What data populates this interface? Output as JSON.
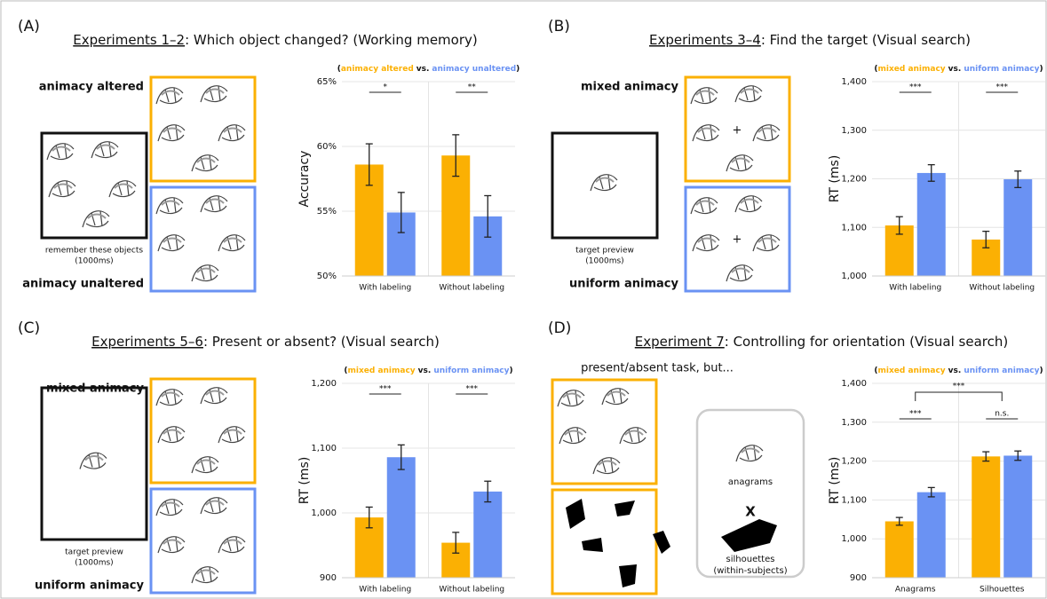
{
  "panels": [
    {
      "label": "(A)",
      "title_underlined": "Experiments 1–2",
      "title_rest": ": Which object changed? (Working memory)",
      "top_label": "animacy altered",
      "bottom_label": "animacy unaltered",
      "caption": [
        "remember these objects",
        "(1000ms)"
      ]
    },
    {
      "label": "(B)",
      "title_underlined": "Experiments 3–4",
      "title_rest": ": Find the target (Visual search)",
      "top_label": "mixed animacy",
      "bottom_label": "uniform animacy",
      "caption": [
        "target preview",
        "(1000ms)"
      ],
      "plus": "+"
    },
    {
      "label": "(C)",
      "title_underlined": "Experiments 5–6",
      "title_rest": ": Present or absent? (Visual search)",
      "top_label": "mixed animacy",
      "bottom_label": "uniform animacy",
      "caption": [
        "target preview",
        "(1000ms)"
      ]
    },
    {
      "label": "(D)",
      "title_underlined": "Experiment 7",
      "title_rest": ": Controlling for orientation (Visual search)",
      "instruction": "present/absent task, but...",
      "factor_a": "anagrams",
      "cross": "X",
      "factor_b": "silhouettes",
      "design_note": "(within-subjects)"
    }
  ],
  "chart_data": [
    {
      "type": "bar",
      "ylabel": "Accuracy",
      "categories": [
        "With labeling",
        "Without labeling"
      ],
      "legend_brackets": [
        "(",
        ")"
      ],
      "legend_joiner": "vs.",
      "series": [
        {
          "name": "animacy altered",
          "color": "#fbb003",
          "values": [
            58.6,
            59.3
          ],
          "errors": [
            1.6,
            1.6
          ]
        },
        {
          "name": "animacy unaltered",
          "color": "#6a92f3",
          "values": [
            54.9,
            54.6
          ],
          "errors": [
            1.55,
            1.6
          ]
        }
      ],
      "ylim": [
        50,
        65
      ],
      "yticks": [
        {
          "value": 50,
          "label": "50%"
        },
        {
          "value": 55,
          "label": "55%"
        },
        {
          "value": 60,
          "label": "60%"
        },
        {
          "value": 65,
          "label": "65%"
        }
      ],
      "grid": true,
      "significance": [
        "*",
        "**"
      ]
    },
    {
      "type": "bar",
      "ylabel": "RT (ms)",
      "categories": [
        "With labeling",
        "Without labeling"
      ],
      "legend_brackets": [
        "(",
        ")"
      ],
      "legend_joiner": "vs.",
      "series": [
        {
          "name": "mixed animacy",
          "color": "#fbb003",
          "values": [
            1104,
            1075
          ],
          "errors": [
            18,
            17
          ]
        },
        {
          "name": "uniform animacy",
          "color": "#6a92f3",
          "values": [
            1212,
            1199
          ],
          "errors": [
            17,
            17
          ]
        }
      ],
      "ylim": [
        1000,
        1400
      ],
      "yticks": [
        {
          "value": 1000,
          "label": "1,000"
        },
        {
          "value": 1100,
          "label": "1,100"
        },
        {
          "value": 1200,
          "label": "1,200"
        },
        {
          "value": 1300,
          "label": "1,300"
        },
        {
          "value": 1400,
          "label": "1,400"
        }
      ],
      "grid": true,
      "significance": [
        "***",
        "***"
      ]
    },
    {
      "type": "bar",
      "ylabel": "RT (ms)",
      "categories": [
        "With labeling",
        "Without labeling"
      ],
      "legend_brackets": [
        "(",
        ")"
      ],
      "legend_joiner": "vs.",
      "series": [
        {
          "name": "mixed animacy",
          "color": "#fbb003",
          "values": [
            993,
            954
          ],
          "errors": [
            16,
            16
          ]
        },
        {
          "name": "uniform animacy",
          "color": "#6a92f3",
          "values": [
            1086,
            1033
          ],
          "errors": [
            19,
            16
          ]
        }
      ],
      "ylim": [
        900,
        1200
      ],
      "yticks": [
        900,
        {
          "value": 1000,
          "label": "1,000"
        },
        {
          "value": 1100,
          "label": "1,100"
        },
        {
          "value": 1200,
          "label": "1,200"
        }
      ],
      "grid": true,
      "significance": [
        "***",
        "***"
      ]
    },
    {
      "type": "bar",
      "ylabel": "RT (ms)",
      "categories": [
        "Anagrams",
        "Silhouettes"
      ],
      "legend_brackets": [
        "(",
        ")"
      ],
      "legend_joiner": "vs.",
      "series": [
        {
          "name": "mixed animacy",
          "color": "#fbb003",
          "values": [
            1045,
            1212
          ],
          "errors": [
            10,
            12
          ]
        },
        {
          "name": "uniform animacy",
          "color": "#6a92f3",
          "values": [
            1120,
            1214
          ],
          "errors": [
            12,
            12
          ]
        }
      ],
      "ylim": [
        900,
        1400
      ],
      "yticks": [
        900,
        {
          "value": 1000,
          "label": "1,000"
        },
        {
          "value": 1100,
          "label": "1,100"
        },
        {
          "value": 1200,
          "label": "1,200"
        },
        {
          "value": 1300,
          "label": "1,300"
        },
        {
          "value": 1400,
          "label": "1,400"
        }
      ],
      "grid": true,
      "significance": [
        "***",
        "n.s."
      ],
      "group_significance": "***"
    }
  ]
}
